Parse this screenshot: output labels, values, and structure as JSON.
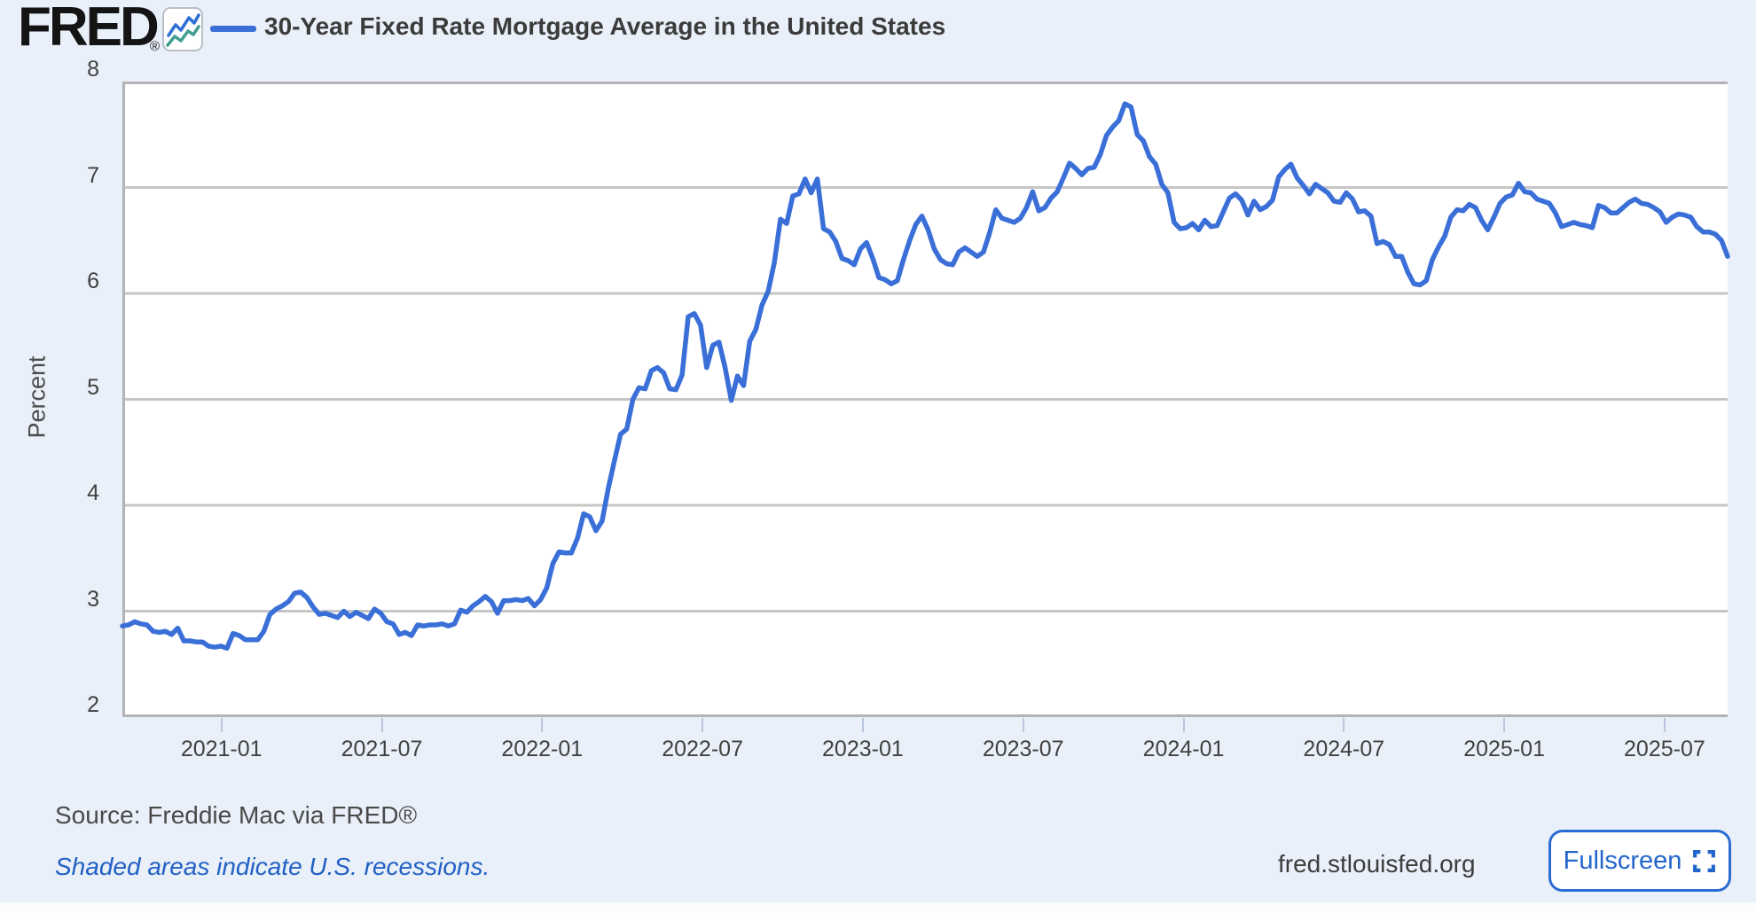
{
  "header": {
    "logo_text": "FRED",
    "registered_mark": "®",
    "series_label": "30-Year Fixed Rate Mortgage Average in the United States"
  },
  "axis": {
    "y_title": "Percent"
  },
  "footer": {
    "source": "Source: Freddie Mac via FRED®",
    "recessions_note": "Shaded areas indicate U.S. recessions.",
    "site": "fred.stlouisfed.org",
    "fullscreen_label": "Fullscreen"
  },
  "colors": {
    "background": "#e9f0f9",
    "plot_background": "#ffffff",
    "line": "#3a6fd8",
    "grid": "#c6c6c6",
    "axis_line": "#b3b3b3",
    "tick_mark": "#b9c6de",
    "blue_text": "#2260c4",
    "logo_icon_blue": "#2e6fd6",
    "logo_icon_teal": "#3f9e90"
  },
  "chart_data": {
    "type": "line",
    "title": "30-Year Fixed Rate Mortgage Average in the United States",
    "ylabel": "Percent",
    "xlabel": "",
    "legend_position": "top-left-header",
    "grid": "horizontal-only",
    "ylim": [
      2,
      8
    ],
    "y_ticks": [
      8,
      7,
      6,
      5,
      4,
      3,
      2
    ],
    "x_ticks": [
      "2021-01",
      "2021-07",
      "2022-01",
      "2022-07",
      "2023-01",
      "2023-07",
      "2024-01",
      "2024-07",
      "2025-01",
      "2025-07"
    ],
    "frequency": "weekly",
    "x_range_start": "2020-09-10",
    "x_range_end": "2025-09-11",
    "values": [
      2.86,
      2.87,
      2.9,
      2.88,
      2.87,
      2.81,
      2.8,
      2.81,
      2.78,
      2.84,
      2.72,
      2.72,
      2.71,
      2.71,
      2.67,
      2.66,
      2.67,
      2.65,
      2.79,
      2.77,
      2.73,
      2.73,
      2.73,
      2.81,
      2.97,
      3.02,
      3.05,
      3.09,
      3.17,
      3.18,
      3.13,
      3.04,
      2.97,
      2.98,
      2.96,
      2.94,
      3.0,
      2.95,
      2.99,
      2.96,
      2.93,
      3.02,
      2.98,
      2.9,
      2.88,
      2.78,
      2.8,
      2.77,
      2.87,
      2.86,
      2.87,
      2.87,
      2.88,
      2.86,
      2.88,
      3.01,
      2.99,
      3.05,
      3.09,
      3.14,
      3.09,
      2.98,
      3.1,
      3.1,
      3.11,
      3.1,
      3.12,
      3.05,
      3.11,
      3.22,
      3.45,
      3.56,
      3.55,
      3.55,
      3.69,
      3.92,
      3.89,
      3.76,
      3.85,
      4.16,
      4.42,
      4.67,
      4.72,
      5.0,
      5.11,
      5.1,
      5.27,
      5.3,
      5.25,
      5.1,
      5.09,
      5.23,
      5.78,
      5.81,
      5.7,
      5.3,
      5.51,
      5.54,
      5.3,
      4.99,
      5.22,
      5.13,
      5.55,
      5.66,
      5.89,
      6.02,
      6.29,
      6.7,
      6.66,
      6.92,
      6.94,
      7.08,
      6.95,
      7.08,
      6.61,
      6.58,
      6.49,
      6.33,
      6.31,
      6.27,
      6.42,
      6.48,
      6.33,
      6.15,
      6.13,
      6.09,
      6.12,
      6.32,
      6.5,
      6.65,
      6.73,
      6.6,
      6.42,
      6.32,
      6.28,
      6.27,
      6.39,
      6.43,
      6.39,
      6.35,
      6.39,
      6.57,
      6.79,
      6.71,
      6.69,
      6.67,
      6.71,
      6.81,
      6.96,
      6.78,
      6.81,
      6.9,
      6.96,
      7.09,
      7.23,
      7.18,
      7.12,
      7.18,
      7.19,
      7.31,
      7.49,
      7.57,
      7.63,
      7.79,
      7.76,
      7.5,
      7.44,
      7.29,
      7.22,
      7.03,
      6.95,
      6.67,
      6.61,
      6.62,
      6.66,
      6.6,
      6.69,
      6.63,
      6.64,
      6.77,
      6.9,
      6.94,
      6.88,
      6.74,
      6.87,
      6.79,
      6.82,
      6.88,
      7.1,
      7.17,
      7.22,
      7.09,
      7.02,
      6.94,
      7.03,
      6.99,
      6.95,
      6.87,
      6.86,
      6.95,
      6.89,
      6.77,
      6.78,
      6.73,
      6.47,
      6.49,
      6.46,
      6.35,
      6.35,
      6.2,
      6.09,
      6.08,
      6.12,
      6.32,
      6.44,
      6.54,
      6.72,
      6.79,
      6.78,
      6.84,
      6.81,
      6.69,
      6.6,
      6.72,
      6.85,
      6.91,
      6.93,
      7.04,
      6.96,
      6.95,
      6.89,
      6.87,
      6.85,
      6.76,
      6.63,
      6.65,
      6.67,
      6.65,
      6.64,
      6.62,
      6.83,
      6.81,
      6.76,
      6.76,
      6.81,
      6.86,
      6.89,
      6.85,
      6.84,
      6.81,
      6.77,
      6.67,
      6.72,
      6.75,
      6.74,
      6.72,
      6.63,
      6.58,
      6.58,
      6.56,
      6.5,
      6.35
    ]
  }
}
